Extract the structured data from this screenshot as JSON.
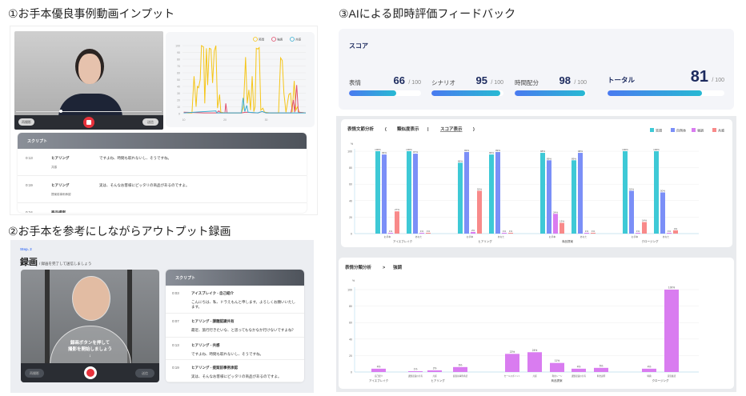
{
  "section1": {
    "title": "①お手本優良事例動画インプット",
    "video": {
      "left_button": "再撮影",
      "right_button": "送信"
    },
    "script": {
      "header": "スクリプト",
      "rows": [
        {
          "time": "0:13",
          "scene": "ヒアリング",
          "tag": "共感",
          "text": "ですよね、時間も取れないし、そうですね。"
        },
        {
          "time": "0:19",
          "scene": "ヒアリング",
          "tag": "提案前事例承認",
          "text": "実は、そんなお客様にピッタリの商品があるのですよ。"
        },
        {
          "time": "0:24",
          "scene": "商品提案",
          "tag": "",
          "text": ""
        }
      ]
    }
  },
  "line_chart": {
    "type": "line",
    "legend": [
      "笑顔",
      "強調",
      "共感"
    ],
    "colors": [
      "#f5c518",
      "#e0506e",
      "#3aaed0"
    ],
    "ylim": [
      0,
      100
    ],
    "yticks": [
      0,
      10,
      20,
      30,
      40,
      50,
      60,
      70,
      80,
      90,
      100
    ],
    "xticks": [
      10,
      20,
      30
    ],
    "xlim": [
      9.7,
      39.6
    ],
    "series": [
      {
        "name": "笑顔",
        "points": [
          [
            10,
            2
          ],
          [
            11,
            1
          ],
          [
            12,
            1
          ],
          [
            12.5,
            55
          ],
          [
            13,
            10
          ],
          [
            13.3,
            40
          ],
          [
            13.6,
            38
          ],
          [
            14,
            50
          ],
          [
            14.3,
            100
          ],
          [
            14.8,
            98
          ],
          [
            15.1,
            15
          ],
          [
            15.5,
            96
          ],
          [
            15.8,
            42
          ],
          [
            16.2,
            96
          ],
          [
            16.6,
            95
          ],
          [
            17,
            45
          ],
          [
            17.4,
            92
          ],
          [
            17.8,
            100
          ],
          [
            18.2,
            8
          ],
          [
            18.7,
            28
          ],
          [
            19,
            2
          ],
          [
            20,
            1
          ],
          [
            22,
            1
          ],
          [
            24,
            1
          ],
          [
            24.5,
            10
          ],
          [
            25,
            83
          ],
          [
            25.4,
            15
          ],
          [
            25.8,
            35
          ],
          [
            26.2,
            5
          ],
          [
            26.6,
            55
          ],
          [
            27,
            3
          ],
          [
            27.3,
            10
          ],
          [
            27.6,
            96
          ],
          [
            28,
            95
          ],
          [
            28.3,
            97
          ],
          [
            28.7,
            5
          ],
          [
            29.2,
            8
          ],
          [
            29.6,
            2
          ],
          [
            31,
            1
          ],
          [
            33,
            1
          ],
          [
            33.5,
            82
          ],
          [
            33.9,
            78
          ],
          [
            34.3,
            30
          ],
          [
            34.8,
            2
          ],
          [
            35.5,
            28
          ],
          [
            35.9,
            30
          ],
          [
            36.3,
            2
          ],
          [
            36.8,
            48
          ],
          [
            37.2,
            5
          ],
          [
            37.6,
            10
          ],
          [
            38,
            2
          ],
          [
            39.6,
            1
          ]
        ]
      },
      {
        "name": "強調",
        "points": [
          [
            10,
            2
          ],
          [
            15,
            1
          ],
          [
            18,
            1
          ],
          [
            18.5,
            4
          ],
          [
            19,
            1
          ],
          [
            20,
            1
          ],
          [
            20.2,
            15
          ],
          [
            20.5,
            1
          ],
          [
            24,
            1
          ],
          [
            25,
            2
          ],
          [
            28,
            1
          ],
          [
            29,
            3
          ],
          [
            30,
            1
          ],
          [
            36,
            1
          ],
          [
            36.6,
            20
          ],
          [
            36.9,
            2
          ],
          [
            37.4,
            42
          ],
          [
            37.8,
            2
          ],
          [
            39.6,
            1
          ]
        ]
      },
      {
        "name": "共感",
        "points": [
          [
            10,
            1
          ],
          [
            17.8,
            4
          ],
          [
            18,
            1
          ],
          [
            24,
            1
          ],
          [
            24.4,
            23
          ],
          [
            24.8,
            3
          ],
          [
            25.3,
            12
          ],
          [
            25.6,
            2
          ],
          [
            28,
            1
          ],
          [
            29,
            3
          ],
          [
            30,
            1
          ],
          [
            39.6,
            1
          ]
        ]
      }
    ]
  },
  "section2": {
    "title": "②お手本を参考にしながらアウトプット録画",
    "step": "Step. 2",
    "heading": "録画",
    "subheading": "/ 録画を完了して送信しましょう",
    "overlay": [
      "録画ボタンを押して",
      "撮影を開始しましょう"
    ],
    "left_button": "再撮影",
    "right_button": "送信",
    "script": {
      "header": "スクリプト",
      "rows": [
        {
          "time": "0:03",
          "scene": "アイスブレイク - 自己紹介",
          "text": "こんにちは、私、ドラえもんと申します。よろしくお願いいたします。"
        },
        {
          "time": "0:07",
          "scene": "ヒアリング - 課題認識共有",
          "text": "最近、旅行行きたいな、と思ってもなかなか行けないですよね？"
        },
        {
          "time": "0:13",
          "scene": "ヒアリング - 共感",
          "text": "ですよね、時間も取れないし、そうですね。"
        },
        {
          "time": "0:19",
          "scene": "ヒアリング - 提案前事例承認",
          "text": "実は、そんなお客様にピッタリの商品があるのですよ。"
        }
      ]
    }
  },
  "section3": {
    "title": "③AIによる即時評価フィードバック",
    "score": {
      "title": "スコア",
      "items": [
        {
          "label": "表情",
          "value": 66,
          "max": "/ 100"
        },
        {
          "label": "シナリオ",
          "value": 95,
          "max": "/ 100"
        },
        {
          "label": "時間配分",
          "value": 98,
          "max": "/ 100"
        }
      ],
      "total": {
        "label": "トータル",
        "value": 81,
        "max": "/ 100"
      }
    }
  },
  "chart_data": [
    {
      "type": "bar",
      "title": "表情文節分析",
      "toggle_open": "(",
      "toggle_a": "類似度表示",
      "toggle_sep": "|",
      "toggle_b": "スコア表示",
      "toggle_close": ")",
      "ylabel": "%",
      "ylim": [
        0,
        100
      ],
      "yticks": [
        0,
        20,
        40,
        60,
        80,
        100
      ],
      "legend": [
        "笑顔",
        "自然体",
        "強調",
        "共感"
      ],
      "colors": [
        "#3ec9d6",
        "#7b8ff7",
        "#d97cf0",
        "#f88a8a"
      ],
      "categories": [
        "アイスブレイク",
        "ヒアリング",
        "商品提案",
        "クロージング"
      ],
      "subcategories": [
        "お手本",
        "あなた"
      ],
      "values": [
        [
          [
            100,
            96,
            1,
            27
          ],
          [
            100,
            97,
            1,
            1
          ]
        ],
        [
          [
            86,
            99,
            2,
            52
          ],
          [
            96,
            99,
            1,
            1
          ]
        ],
        [
          [
            98,
            89,
            24,
            13
          ],
          [
            89,
            98,
            1,
            1
          ]
        ],
        [
          [
            100,
            52,
            1,
            14
          ],
          [
            100,
            50,
            1,
            4
          ]
        ]
      ]
    },
    {
      "type": "bar",
      "title": "表情分類分析",
      "breadcrumb_sep": ">",
      "subtitle": "強調",
      "ylabel": "%",
      "ylim": [
        0,
        100
      ],
      "yticks": [
        0,
        20,
        40,
        60,
        80,
        100
      ],
      "color": "#d97cf0",
      "groups": [
        {
          "name": "アイスブレイク",
          "bars": [
            {
              "label": "自己紹介",
              "value": 4
            }
          ]
        },
        {
          "name": "ヒアリング",
          "bars": [
            {
              "label": "課題認識の共有",
              "value": 1
            },
            {
              "label": "共感",
              "value": 2
            },
            {
              "label": "提案前事例承認",
              "value": 6
            }
          ]
        },
        {
          "name": "商品提案",
          "bars": [
            {
              "label": "セールスポイント",
              "value": 22
            },
            {
              "label": "共感",
              "value": 24
            },
            {
              "label": "利用シーン",
              "value": 11
            },
            {
              "label": "課題認識の共有",
              "value": 4
            },
            {
              "label": "料金説明",
              "value": 5
            }
          ]
        },
        {
          "name": "クロージング",
          "bars": [
            {
              "label": "特典",
              "value": 4
            },
            {
              "label": "意思確認",
              "value": 100
            }
          ]
        }
      ]
    }
  ]
}
